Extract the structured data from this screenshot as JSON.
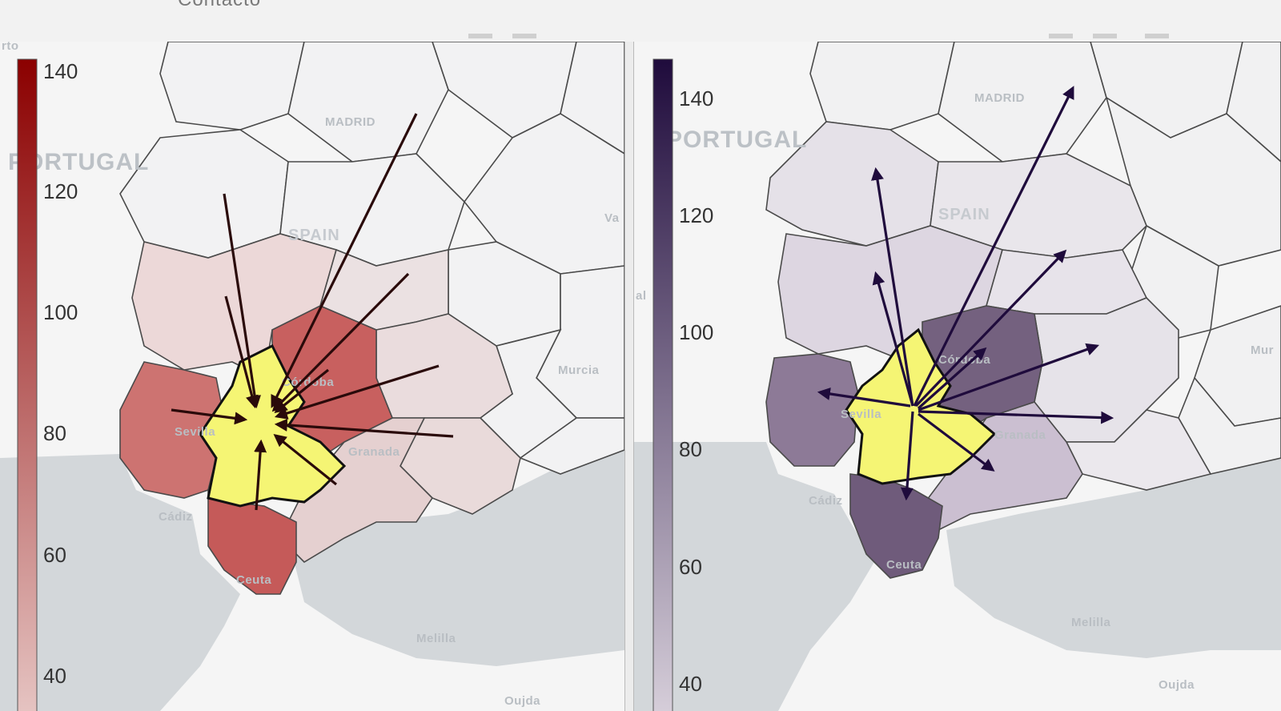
{
  "page": {
    "title": "Contacto"
  },
  "labels": {
    "madrid": "MADRID",
    "portugal": "PORTUGAL",
    "spain": "SPAIN",
    "cordoba": "Córdoba",
    "sevilla": "Sevilla",
    "granada": "Granada",
    "cadiz": "Cádiz",
    "ceuta": "Ceuta",
    "melilla": "Melilla",
    "murcia": "Murcia",
    "oujda": "Oujda",
    "porto": "rto",
    "valencia": "Va",
    "al": "al",
    "murcia_cut": "Mur"
  },
  "colorbars": [
    {
      "ticks": [
        "140",
        "120",
        "100",
        "80",
        "60",
        "40"
      ],
      "min": 40,
      "max": 140,
      "color_low": "#e7c7c5",
      "color_high": "#8b0000"
    },
    {
      "ticks": [
        "140",
        "120",
        "100",
        "80",
        "60",
        "40"
      ],
      "min": 40,
      "max": 140,
      "color_low": "#d9d1dc",
      "color_high": "#1f0b3c"
    }
  ],
  "colors": {
    "focus": "#f5f574",
    "arrow_left": "#2a0a0a",
    "arrow_right": "#1f0b3c",
    "sea": "#d3d7da"
  }
}
